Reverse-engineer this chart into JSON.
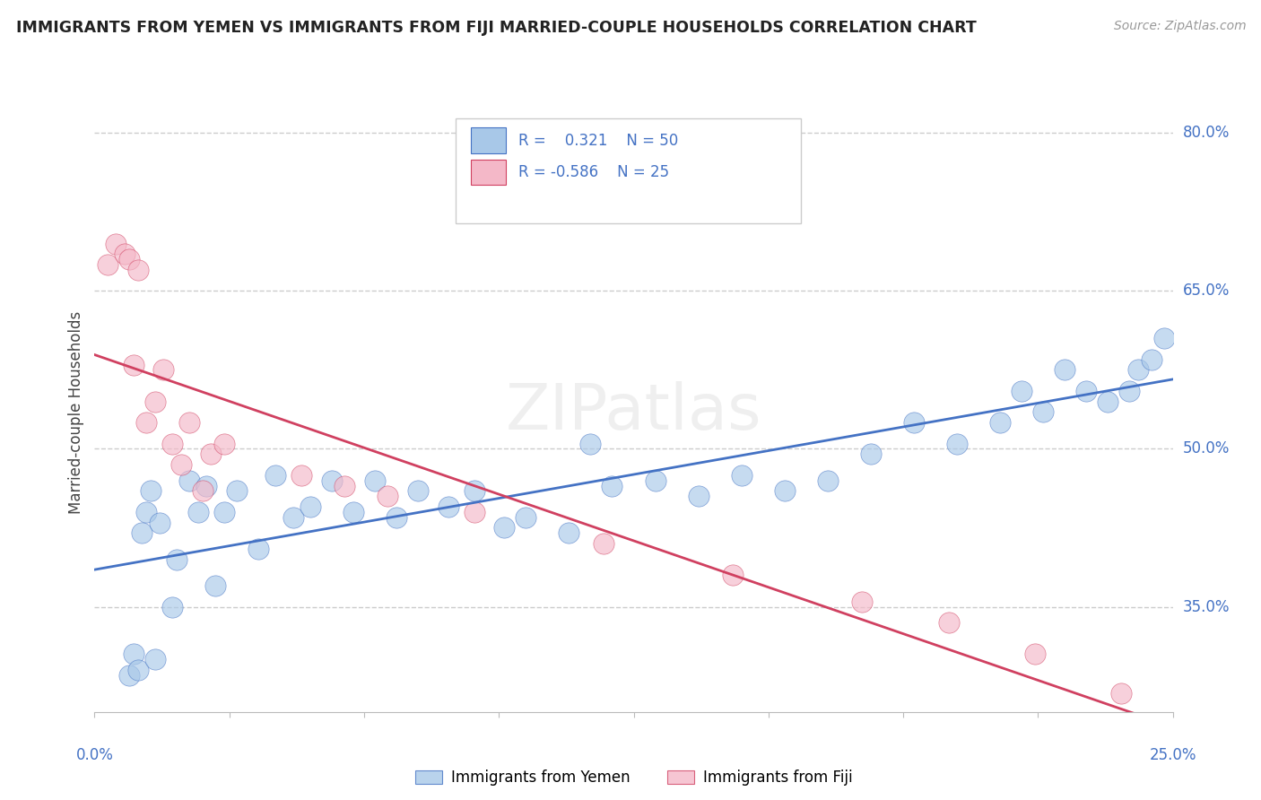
{
  "title": "IMMIGRANTS FROM YEMEN VS IMMIGRANTS FROM FIJI MARRIED-COUPLE HOUSEHOLDS CORRELATION CHART",
  "source": "Source: ZipAtlas.com",
  "ylabel": "Married-couple Households",
  "xmin": 0.0,
  "xmax": 0.25,
  "ymin": 0.25,
  "ymax": 0.82,
  "legend_r1": "R =  0.321",
  "legend_n1": "N = 50",
  "legend_r2": "R = -0.586",
  "legend_n2": "N = 25",
  "color_blue": "#A8C8E8",
  "color_pink": "#F4B8C8",
  "trendline_blue": "#4472C4",
  "trendline_pink": "#D04060",
  "background": "#FFFFFF",
  "grid_color": "#CCCCCC",
  "yemen_x": [
    0.008,
    0.009,
    0.01,
    0.011,
    0.012,
    0.013,
    0.014,
    0.015,
    0.018,
    0.019,
    0.022,
    0.024,
    0.026,
    0.028,
    0.03,
    0.033,
    0.038,
    0.042,
    0.046,
    0.05,
    0.055,
    0.06,
    0.065,
    0.07,
    0.075,
    0.082,
    0.088,
    0.095,
    0.1,
    0.11,
    0.115,
    0.12,
    0.13,
    0.14,
    0.15,
    0.16,
    0.17,
    0.18,
    0.19,
    0.2,
    0.21,
    0.215,
    0.22,
    0.225,
    0.23,
    0.235,
    0.24,
    0.242,
    0.245,
    0.248
  ],
  "yemen_y": [
    0.285,
    0.305,
    0.29,
    0.42,
    0.44,
    0.46,
    0.3,
    0.43,
    0.35,
    0.395,
    0.47,
    0.44,
    0.465,
    0.37,
    0.44,
    0.46,
    0.405,
    0.475,
    0.435,
    0.445,
    0.47,
    0.44,
    0.47,
    0.435,
    0.46,
    0.445,
    0.46,
    0.425,
    0.435,
    0.42,
    0.505,
    0.465,
    0.47,
    0.455,
    0.475,
    0.46,
    0.47,
    0.495,
    0.525,
    0.505,
    0.525,
    0.555,
    0.535,
    0.575,
    0.555,
    0.545,
    0.555,
    0.575,
    0.585,
    0.605
  ],
  "fiji_x": [
    0.003,
    0.005,
    0.007,
    0.008,
    0.009,
    0.01,
    0.012,
    0.014,
    0.016,
    0.018,
    0.02,
    0.022,
    0.025,
    0.027,
    0.03,
    0.048,
    0.058,
    0.068,
    0.088,
    0.118,
    0.148,
    0.178,
    0.198,
    0.218,
    0.238
  ],
  "fiji_y": [
    0.675,
    0.695,
    0.685,
    0.68,
    0.58,
    0.67,
    0.525,
    0.545,
    0.575,
    0.505,
    0.485,
    0.525,
    0.46,
    0.495,
    0.505,
    0.475,
    0.465,
    0.455,
    0.44,
    0.41,
    0.38,
    0.355,
    0.335,
    0.305,
    0.268
  ]
}
